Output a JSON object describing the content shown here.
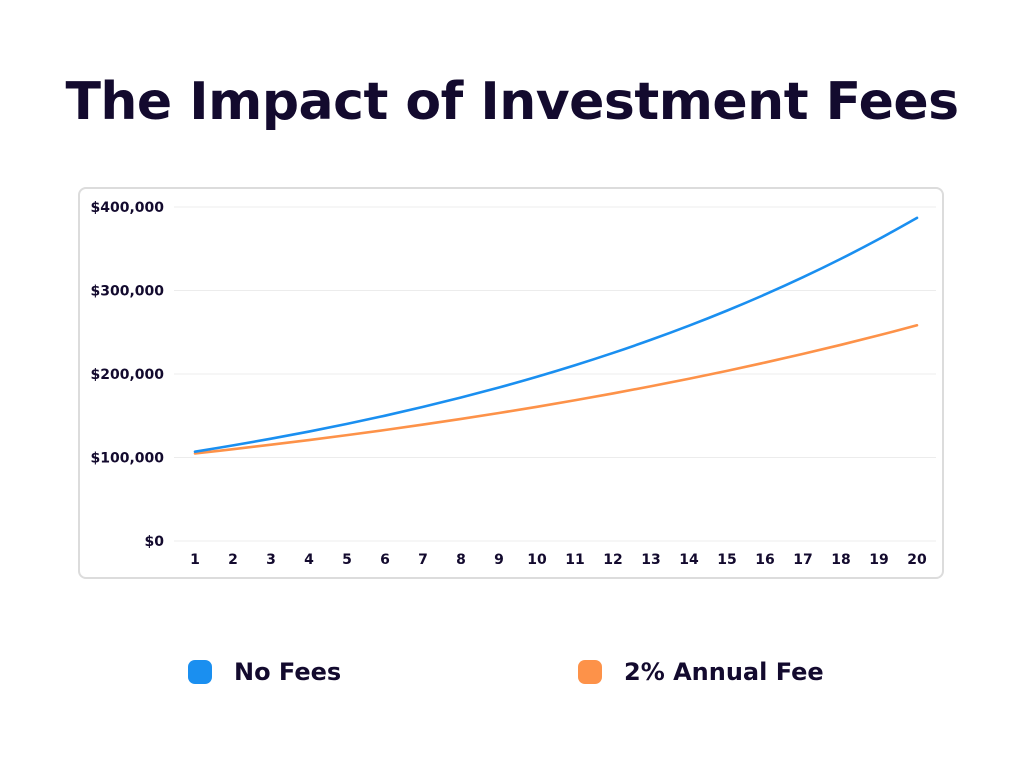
{
  "title": "The Impact of Investment Fees",
  "chart_data": {
    "type": "line",
    "title": "The Impact of Investment Fees",
    "categories": [
      "1",
      "2",
      "3",
      "4",
      "5",
      "6",
      "7",
      "8",
      "9",
      "10",
      "11",
      "12",
      "13",
      "14",
      "15",
      "16",
      "17",
      "18",
      "19",
      "20"
    ],
    "y_tick_labels": [
      "$0",
      "$100,000",
      "$200,000",
      "$300,000",
      "$400,000"
    ],
    "y_ticks": [
      0,
      100000,
      200000,
      300000,
      400000
    ],
    "ylim": [
      0,
      400000
    ],
    "grid": true,
    "legend_position": "bottom",
    "series": [
      {
        "name": "No Fees",
        "color": "#1a8ff0",
        "values": [
          107000,
          114490,
          122504,
          131080,
          140255,
          150073,
          160578,
          171819,
          183846,
          196715,
          210485,
          225219,
          240985,
          257853,
          275903,
          295216,
          315882,
          337993,
          361653,
          386968
        ]
      },
      {
        "name": "2% Annual Fee",
        "color": "#fd9249",
        "values": [
          104860,
          109956,
          115300,
          120904,
          126780,
          132941,
          139402,
          146177,
          153282,
          160731,
          168543,
          176734,
          185324,
          194330,
          203775,
          213678,
          224063,
          234953,
          246372,
          258345
        ]
      }
    ]
  },
  "legend": [
    {
      "label": "No Fees",
      "color": "#1a8ff0"
    },
    {
      "label": "2% Annual Fee",
      "color": "#fd9249"
    }
  ]
}
